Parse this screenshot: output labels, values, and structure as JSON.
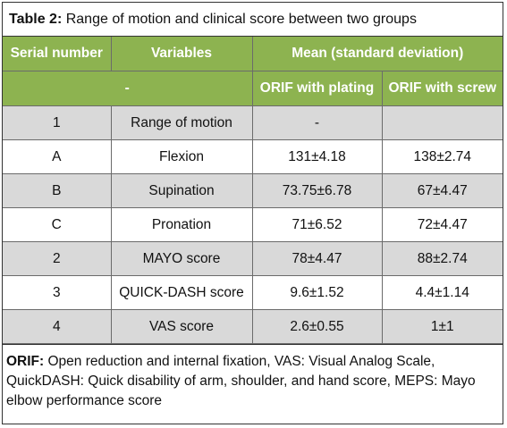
{
  "caption": {
    "label": "Table 2:",
    "text": " Range of motion and clinical score between two groups"
  },
  "table": {
    "header": {
      "serial": "Serial number",
      "variables": "Variables",
      "mean": "Mean (standard deviation)"
    },
    "subheader": {
      "blank": "-",
      "plating": "ORIF with plating",
      "screw": "ORIF with screw"
    },
    "rows": [
      {
        "serial": "1",
        "variable": "Range of motion",
        "plating": "-",
        "screw": ""
      },
      {
        "serial": "A",
        "variable": "Flexion",
        "plating": "131±4.18",
        "screw": "138±2.74"
      },
      {
        "serial": "B",
        "variable": "Supination",
        "plating": "73.75±6.78",
        "screw": "67±4.47"
      },
      {
        "serial": "C",
        "variable": "Pronation",
        "plating": "71±6.52",
        "screw": "72±4.47"
      },
      {
        "serial": "2",
        "variable": "MAYO score",
        "plating": "78±4.47",
        "screw": "88±2.74"
      },
      {
        "serial": "3",
        "variable": "QUICK-DASH score",
        "plating": "9.6±1.52",
        "screw": "4.4±1.14"
      },
      {
        "serial": "4",
        "variable": "VAS score",
        "plating": "2.6±0.55",
        "screw": "1±1"
      }
    ]
  },
  "footnote": {
    "label": "ORIF:",
    "text": " Open reduction and internal fixation, VAS: Visual Analog Scale, QuickDASH: Quick disability of arm, shoulder, and hand score, MEPS: Mayo elbow performance score"
  },
  "colors": {
    "header_green": "#8db350",
    "row_shade": "#d9d9d9"
  }
}
